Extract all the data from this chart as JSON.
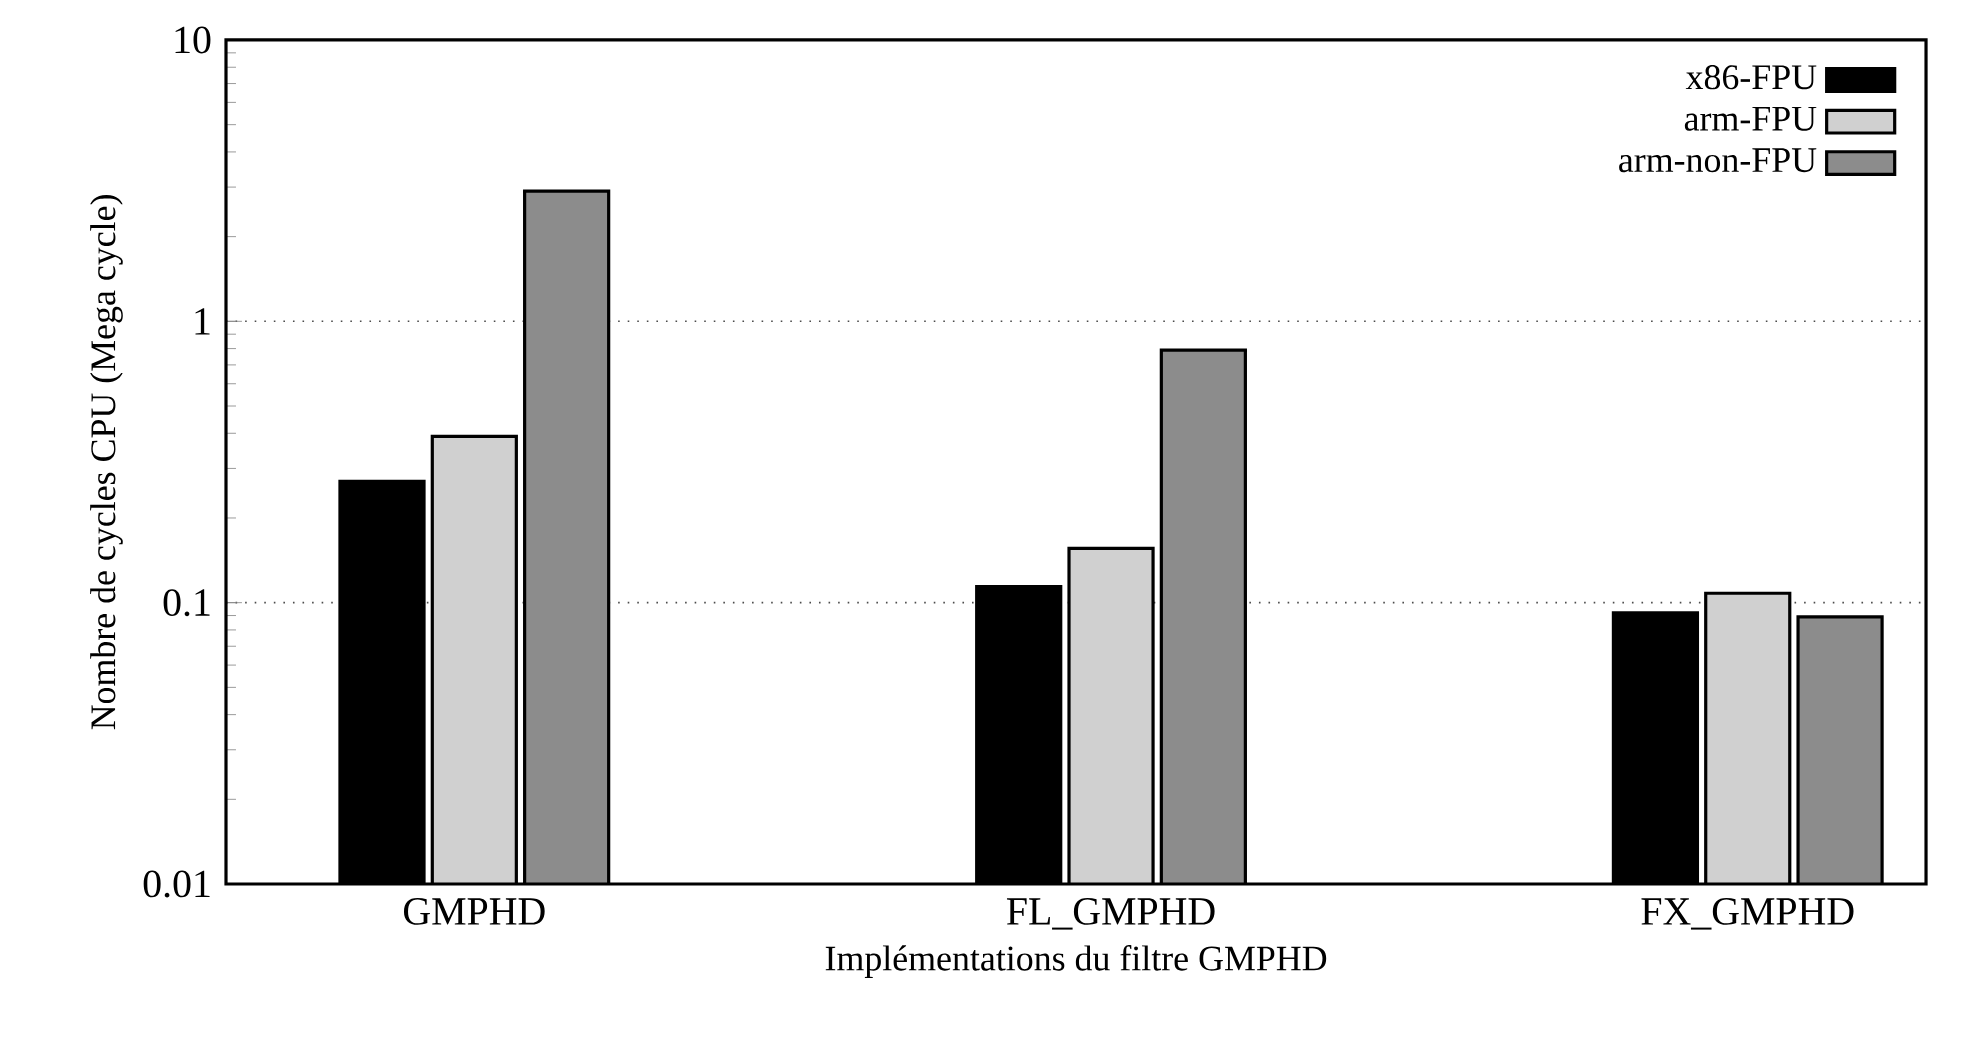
{
  "chart_data": {
    "type": "bar",
    "xlabel": "Implémentations du filtre GMPHD",
    "ylabel": "Nombre de cycles CPU (Mega cycle)",
    "categories": [
      "GMPHD",
      "FL_GMPHD",
      "FX_GMPHD"
    ],
    "series": [
      {
        "name": "x86-FPU",
        "color": "#000000",
        "values": [
          0.27,
          0.114,
          0.092
        ]
      },
      {
        "name": "arm-FPU",
        "color": "#d0d0d0",
        "values": [
          0.39,
          0.156,
          0.108
        ]
      },
      {
        "name": "arm-non-FPU",
        "color": "#8c8c8c",
        "values": [
          2.9,
          0.79,
          0.089
        ]
      }
    ],
    "log": true,
    "ylim": [
      0.01,
      10
    ],
    "yticks": [
      0.01,
      0.1,
      1,
      10
    ],
    "grid": "y",
    "legend": "top right"
  }
}
